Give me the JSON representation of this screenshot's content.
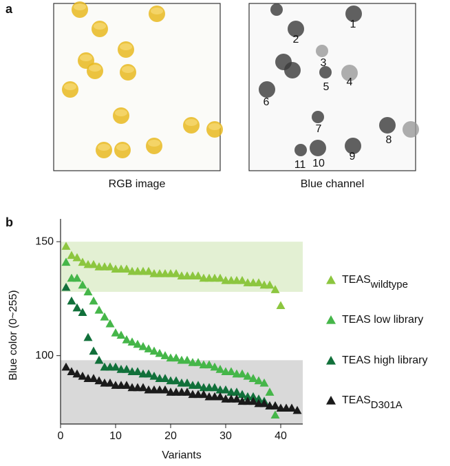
{
  "panel_a": {
    "label": "a",
    "left_caption": "RGB image",
    "right_caption": "Blue channel",
    "blue_channel_labels": [
      "1",
      "2",
      "3",
      "4",
      "5",
      "6",
      "7",
      "8",
      "9",
      "10",
      "11"
    ]
  },
  "panel_b": {
    "label": "b"
  },
  "chart_data": {
    "type": "scatter",
    "xlabel": "Variants",
    "ylabel": "Blue color (0~255)",
    "xlim": [
      0,
      44
    ],
    "ylim": [
      70,
      160
    ],
    "xticks": [
      0,
      10,
      20,
      30,
      40
    ],
    "yticks": [
      100,
      150
    ],
    "bands": [
      {
        "from": 128,
        "to": 150,
        "color": "#e3f0d3"
      },
      {
        "from": 70,
        "to": 98,
        "color": "#d9d9d9"
      }
    ],
    "series": [
      {
        "name": "TEAS",
        "subscript": "wildtype",
        "color": "#8cc63f",
        "x": [
          1,
          2,
          3,
          4,
          5,
          6,
          7,
          8,
          9,
          10,
          11,
          12,
          13,
          14,
          15,
          16,
          17,
          18,
          19,
          20,
          21,
          22,
          23,
          24,
          25,
          26,
          27,
          28,
          29,
          30,
          31,
          32,
          33,
          34,
          35,
          36,
          37,
          38,
          39,
          40
        ],
        "values": [
          148,
          144,
          143,
          141,
          140,
          140,
          139,
          139,
          139,
          138,
          138,
          138,
          137,
          137,
          137,
          137,
          136,
          136,
          136,
          136,
          136,
          135,
          135,
          135,
          135,
          134,
          134,
          134,
          134,
          133,
          133,
          133,
          133,
          132,
          132,
          132,
          131,
          131,
          129,
          122
        ]
      },
      {
        "name": "TEAS low library",
        "color": "#45b649",
        "x": [
          1,
          2,
          3,
          4,
          5,
          6,
          7,
          8,
          9,
          10,
          11,
          12,
          13,
          14,
          15,
          16,
          17,
          18,
          19,
          20,
          21,
          22,
          23,
          24,
          25,
          26,
          27,
          28,
          29,
          30,
          31,
          32,
          33,
          34,
          35,
          36,
          37,
          38,
          39
        ],
        "values": [
          141,
          134,
          134,
          131,
          128,
          124,
          120,
          117,
          114,
          110,
          109,
          107,
          106,
          105,
          104,
          103,
          102,
          101,
          100,
          99,
          99,
          98,
          98,
          97,
          97,
          96,
          96,
          95,
          94,
          93,
          93,
          92,
          92,
          91,
          90,
          89,
          88,
          84,
          74
        ]
      },
      {
        "name": "TEAS high library",
        "color": "#11703a",
        "x": [
          1,
          2,
          3,
          4,
          5,
          6,
          7,
          8,
          9,
          10,
          11,
          12,
          13,
          14,
          15,
          16,
          17,
          18,
          19,
          20,
          21,
          22,
          23,
          24,
          25,
          26,
          27,
          28,
          29,
          30,
          31,
          32,
          33,
          34,
          35,
          36,
          37,
          38,
          39
        ],
        "values": [
          130,
          124,
          121,
          119,
          108,
          102,
          98,
          95,
          95,
          95,
          94,
          94,
          93,
          93,
          92,
          92,
          91,
          90,
          90,
          89,
          89,
          88,
          88,
          87,
          87,
          86,
          86,
          86,
          85,
          85,
          84,
          84,
          83,
          82,
          82,
          81,
          80,
          78,
          78
        ]
      },
      {
        "name": "TEAS",
        "subscript": "D301A",
        "color": "#1a1a1a",
        "x": [
          1,
          2,
          3,
          4,
          5,
          6,
          7,
          8,
          9,
          10,
          11,
          12,
          13,
          14,
          15,
          16,
          17,
          18,
          19,
          20,
          21,
          22,
          23,
          24,
          25,
          26,
          27,
          28,
          29,
          30,
          31,
          32,
          33,
          34,
          35,
          36,
          37,
          38,
          39,
          40,
          41,
          42,
          43
        ],
        "values": [
          95,
          93,
          92,
          91,
          90,
          90,
          89,
          88,
          88,
          87,
          87,
          87,
          86,
          86,
          86,
          85,
          85,
          85,
          85,
          84,
          84,
          84,
          84,
          83,
          83,
          83,
          82,
          82,
          82,
          81,
          81,
          81,
          80,
          80,
          80,
          79,
          79,
          78,
          78,
          77,
          77,
          77,
          76
        ]
      }
    ]
  }
}
